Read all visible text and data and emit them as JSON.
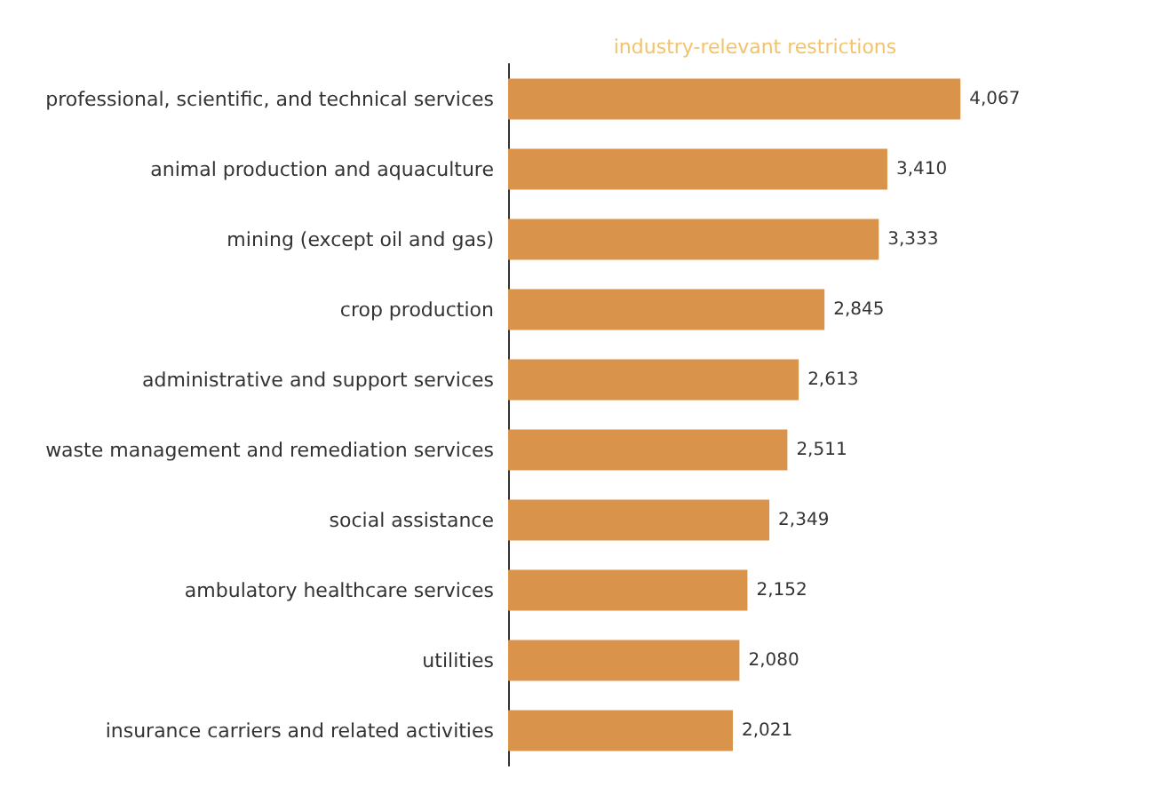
{
  "chart_data": {
    "type": "bar",
    "orientation": "horizontal",
    "title": "industry-relevant restrictions",
    "categories": [
      "professional, scientific, and technical services",
      "animal production and aquaculture",
      "mining (except oil and gas)",
      "crop production",
      "administrative and support services",
      "waste management and remediation services",
      "social assistance",
      "ambulatory healthcare services",
      "utilities",
      "insurance carriers and related activities"
    ],
    "values": [
      4067,
      3410,
      3333,
      2845,
      2613,
      2511,
      2349,
      2152,
      2080,
      2021
    ],
    "value_labels": [
      "4,067",
      "3,410",
      "3,333",
      "2,845",
      "2,613",
      "2,511",
      "2,349",
      "2,152",
      "2,080",
      "2,021"
    ],
    "color": "#d9934a",
    "tick_labels": "y"
  }
}
